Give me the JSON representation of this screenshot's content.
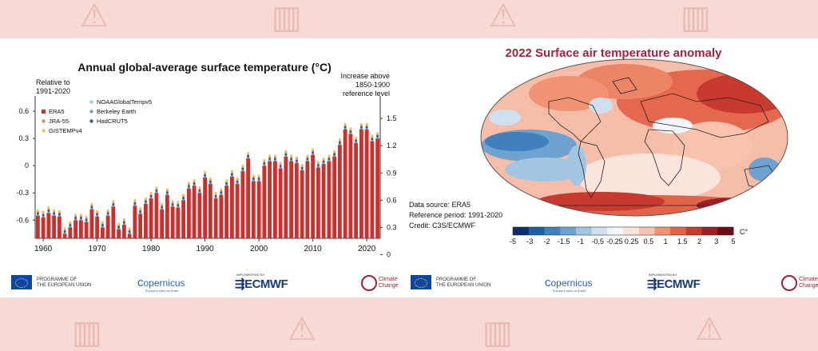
{
  "left_panel": {
    "title": "Annual global-average surface temperature (°C)",
    "left_axis_caption": "Relative to\n1991-2020",
    "right_axis_caption": "Increase above\n1850-1900\nreference level",
    "legend": [
      {
        "name": "ERA5",
        "color": "#c7312e",
        "marker": "square"
      },
      {
        "name": "JRA-55",
        "color": "#e88a3c",
        "marker": "dot"
      },
      {
        "name": "GISTEMPv4",
        "color": "#f2c060",
        "marker": "dot"
      },
      {
        "name": "NOAAGlobalTempv5",
        "color": "#9fc9e6",
        "marker": "dot"
      },
      {
        "name": "Berkeley Earth",
        "color": "#7c9fb8",
        "marker": "dot"
      },
      {
        "name": "HadCRUT5",
        "color": "#3d5a7a",
        "marker": "dot"
      }
    ]
  },
  "chart_data": {
    "type": "bar",
    "title": "Annual global-average surface temperature (°C)",
    "x": [
      1959,
      1960,
      1961,
      1962,
      1963,
      1964,
      1965,
      1966,
      1967,
      1968,
      1969,
      1970,
      1971,
      1972,
      1973,
      1974,
      1975,
      1976,
      1977,
      1978,
      1979,
      1980,
      1981,
      1982,
      1983,
      1984,
      1985,
      1986,
      1987,
      1988,
      1989,
      1990,
      1991,
      1992,
      1993,
      1994,
      1995,
      1996,
      1997,
      1998,
      1999,
      2000,
      2001,
      2002,
      2003,
      2004,
      2005,
      2006,
      2007,
      2008,
      2009,
      2010,
      2011,
      2012,
      2013,
      2014,
      2015,
      2016,
      2017,
      2018,
      2019,
      2020,
      2021,
      2022
    ],
    "series": [
      {
        "name": "ERA5",
        "values": [
          -0.55,
          -0.57,
          -0.52,
          -0.55,
          -0.56,
          -0.75,
          -0.68,
          -0.6,
          -0.6,
          -0.62,
          -0.48,
          -0.56,
          -0.68,
          -0.55,
          -0.45,
          -0.7,
          -0.65,
          -0.75,
          -0.44,
          -0.53,
          -0.42,
          -0.36,
          -0.3,
          -0.48,
          -0.32,
          -0.45,
          -0.46,
          -0.38,
          -0.25,
          -0.22,
          -0.3,
          -0.13,
          -0.2,
          -0.36,
          -0.32,
          -0.22,
          -0.12,
          -0.2,
          -0.06,
          0.08,
          -0.17,
          -0.17,
          0.0,
          0.05,
          0.05,
          -0.03,
          0.1,
          0.05,
          0.03,
          -0.05,
          0.05,
          0.12,
          -0.02,
          0.02,
          0.05,
          0.1,
          0.23,
          0.4,
          0.35,
          0.25,
          0.4,
          0.4,
          0.27,
          0.3
        ]
      }
    ],
    "left_axis": {
      "ylim": [
        -0.8,
        0.68
      ],
      "ticks": [
        -0.6,
        -0.3,
        0,
        0.3,
        0.6
      ],
      "tick_labels": [
        "-0.6",
        "-0.3",
        "0",
        "0.3",
        "0.6"
      ]
    },
    "right_axis": {
      "ticks": [
        0,
        0.3,
        0.6,
        0.9,
        1.2,
        1.5
      ],
      "tick_labels": [
        "0",
        "0.3",
        "0.6",
        "0.9",
        "1.2",
        "1.5"
      ]
    },
    "x_ticks": [
      1960,
      1970,
      1980,
      1990,
      2000,
      2010,
      2020
    ],
    "legend_position": "top-left",
    "grid": false
  },
  "right_panel": {
    "title": "2022 Surface air temperature anomaly",
    "data_source": "Data source: ERA5",
    "reference_period": "Reference period: 1991-2020",
    "credit": "Credit: C3S/ECMWF",
    "colorbar": {
      "labels": [
        "-5",
        "-3",
        "-2",
        "-1.5",
        "-1",
        "-0.5",
        "-0.25",
        "0.25",
        "0.5",
        "1",
        "1.5",
        "2",
        "3",
        "5"
      ],
      "unit": "C°",
      "colors": [
        "#0c2f6b",
        "#1d5fa3",
        "#3f80bd",
        "#6ea2d1",
        "#a2c5e3",
        "#cfe0f0",
        "#f3f7fb",
        "#fbe4dc",
        "#f8c2ad",
        "#f19373",
        "#e2634a",
        "#c83a2f",
        "#9f1d24",
        "#6d0d14"
      ]
    }
  },
  "logos": {
    "eu_line1": "PROGRAMME OF",
    "eu_line2": "THE EUROPEAN UNION",
    "copernicus": "opernicus",
    "copernicus_tag": "Europe's eyes on Earth",
    "implemented_by": "IMPLEMENTED BY",
    "ecmwf": "ECMWF",
    "climate_change_1": "Climate",
    "climate_change_2": "Change"
  }
}
